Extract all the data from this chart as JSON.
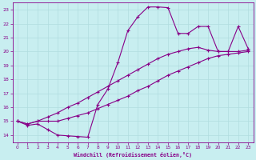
{
  "background_color": "#c8eef0",
  "grid_color": "#b0dde0",
  "line_color": "#880088",
  "marker": "+",
  "markersize": 3.5,
  "markeredgewidth": 0.8,
  "linewidth": 0.8,
  "xlabel": "Windchill (Refroidissement éolien,°C)",
  "xlabel_color": "#880088",
  "ylim": [
    13.5,
    23.5
  ],
  "xlim": [
    -0.5,
    23.5
  ],
  "yticks": [
    14,
    15,
    16,
    17,
    18,
    19,
    20,
    21,
    22,
    23
  ],
  "xticks": [
    0,
    1,
    2,
    3,
    4,
    5,
    6,
    7,
    8,
    9,
    10,
    11,
    12,
    13,
    14,
    15,
    16,
    17,
    18,
    19,
    20,
    21,
    22,
    23
  ],
  "line1_x": [
    0,
    1,
    2,
    3,
    4,
    5,
    6,
    7,
    8,
    9,
    10,
    11,
    12,
    13,
    14,
    15,
    16,
    17,
    18,
    19,
    20,
    21,
    22,
    23
  ],
  "line1_y": [
    15.0,
    14.8,
    15.0,
    15.0,
    15.0,
    15.2,
    15.4,
    15.6,
    15.9,
    16.2,
    16.5,
    16.8,
    17.2,
    17.5,
    17.9,
    18.3,
    18.6,
    18.9,
    19.2,
    19.5,
    19.7,
    19.8,
    19.9,
    20.0
  ],
  "line2_x": [
    0,
    1,
    2,
    3,
    4,
    5,
    6,
    7,
    8,
    9,
    10,
    11,
    12,
    13,
    14,
    15,
    16,
    17,
    18,
    19,
    20,
    21,
    22,
    23
  ],
  "line2_y": [
    15.0,
    14.8,
    15.0,
    15.3,
    15.6,
    16.0,
    16.3,
    16.7,
    17.1,
    17.5,
    17.9,
    18.3,
    18.7,
    19.1,
    19.5,
    19.8,
    20.0,
    20.2,
    20.3,
    20.1,
    20.0,
    20.0,
    20.0,
    20.1
  ],
  "line3_x": [
    0,
    1,
    2,
    3,
    4,
    5,
    6,
    7,
    8,
    9,
    10,
    11,
    12,
    13,
    14,
    15,
    16,
    17,
    18,
    19,
    20,
    21,
    22,
    23
  ],
  "line3_y": [
    15.0,
    14.7,
    14.8,
    14.4,
    14.0,
    13.95,
    13.9,
    13.85,
    16.2,
    17.3,
    19.2,
    21.5,
    22.5,
    23.2,
    23.2,
    23.15,
    21.3,
    21.3,
    21.8,
    21.8,
    20.0,
    20.0,
    21.8,
    20.2
  ]
}
